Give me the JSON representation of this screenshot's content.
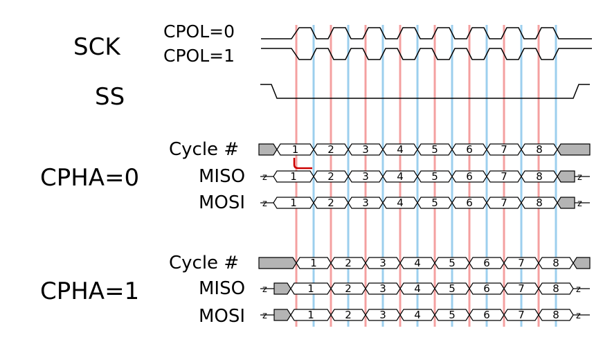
{
  "labels": {
    "sck": "SCK",
    "cpol0": "CPOL=0",
    "cpol1": "CPOL=1",
    "ss": "SS",
    "cpha0": "CPHA=0",
    "cpha1": "CPHA=1",
    "cycle": "Cycle #",
    "miso": "MISO",
    "mosi": "MOSI"
  },
  "cycle_numbers": [
    "1",
    "2",
    "3",
    "4",
    "5",
    "6",
    "7",
    "8"
  ],
  "z_label": "z",
  "colors": {
    "red_line": "#f4a0a0",
    "blue_line": "#9ccfee",
    "shade": "#b4b4b4",
    "arrow": "#cc0000"
  }
}
